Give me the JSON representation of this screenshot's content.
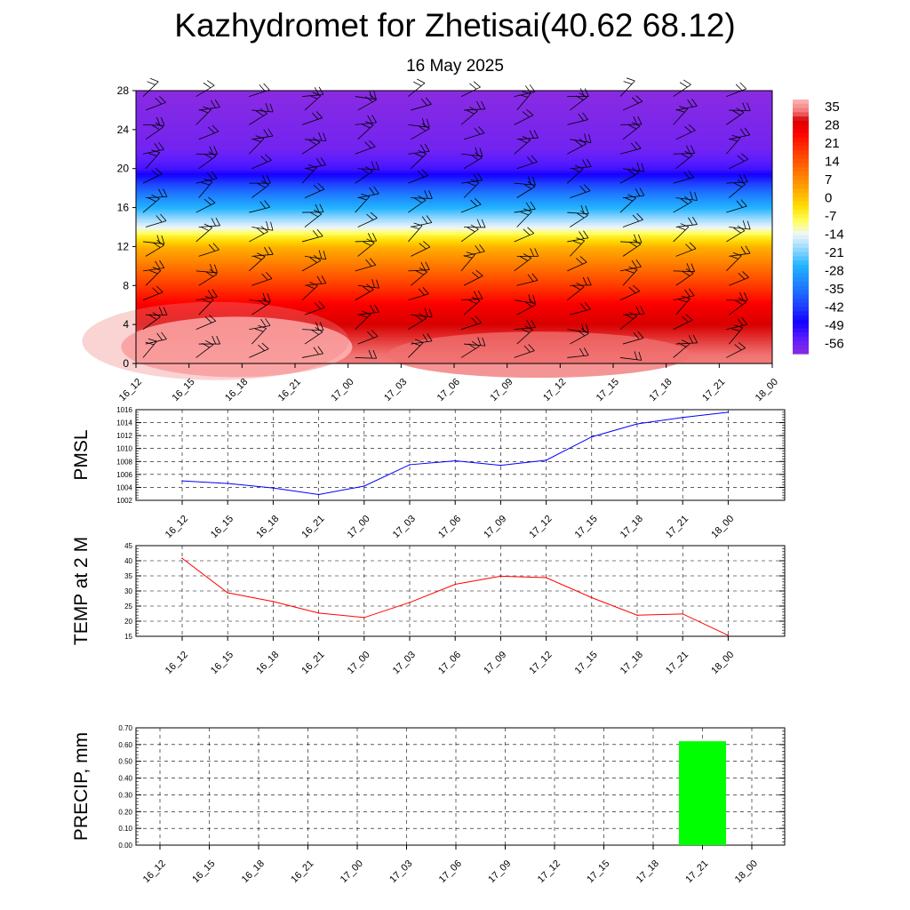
{
  "header": {
    "title": "Kazhydromet for Zhetisai(40.62 68.12)",
    "subtitle": "16 May 2025"
  },
  "time_labels": [
    "16_12",
    "16_15",
    "16_18",
    "16_21",
    "17_00",
    "17_03",
    "17_06",
    "17_09",
    "17_12",
    "17_15",
    "17_18",
    "17_21",
    "18_00"
  ],
  "colors": {
    "pmsl_line": "#0000ff",
    "temp_line": "#ff0000",
    "precip_bar": "#00ff00",
    "grid": "#000000"
  },
  "chart_data": [
    {
      "type": "heatmap",
      "name": "vertical-section",
      "x_labels": [
        "16_12",
        "16_15",
        "16_18",
        "16_21",
        "17_00",
        "17_03",
        "17_06",
        "17_09",
        "17_12",
        "17_15",
        "17_18",
        "17_21",
        "18_00"
      ],
      "y_ticks": [
        "0",
        "4",
        "8",
        "12",
        "16",
        "20",
        "24",
        "28"
      ],
      "ylim": [
        0,
        28
      ],
      "colorbar_labels": [
        "35",
        "28",
        "21",
        "14",
        "7",
        "0",
        "-7",
        "-14",
        "-21",
        "-28",
        "-35",
        "-42",
        "-49",
        "-56"
      ],
      "colorbar_range": [
        -60,
        38
      ],
      "temperature_profile": [
        {
          "z": 0,
          "t": 34
        },
        {
          "z": 4,
          "t": 30
        },
        {
          "z": 6,
          "t": 26
        },
        {
          "z": 8,
          "t": 18
        },
        {
          "z": 10,
          "t": 10
        },
        {
          "z": 12,
          "t": 2
        },
        {
          "z": 13.3,
          "t": -8
        },
        {
          "z": 14,
          "t": -14
        },
        {
          "z": 16,
          "t": -26
        },
        {
          "z": 18,
          "t": -38
        },
        {
          "z": 20,
          "t": -52
        },
        {
          "z": 22,
          "t": -57
        },
        {
          "z": 28,
          "t": -60
        }
      ],
      "overlay": "wind barbs"
    },
    {
      "type": "line",
      "ylabel": "PMSL",
      "categories": [
        "16_12",
        "16_15",
        "16_18",
        "16_21",
        "17_00",
        "17_03",
        "17_06",
        "17_09",
        "17_12",
        "17_15",
        "17_18",
        "17_21",
        "18_00"
      ],
      "values": [
        1005.0,
        1004.6,
        1003.9,
        1002.9,
        1004.2,
        1007.5,
        1008.1,
        1007.4,
        1008.2,
        1011.8,
        1013.8,
        1014.8,
        1015.6
      ],
      "y_ticks": [
        "1002",
        "1004",
        "1006",
        "1008",
        "1010",
        "1012",
        "1014",
        "1016"
      ],
      "ylim": [
        1002,
        1016
      ],
      "grid": true
    },
    {
      "type": "line",
      "ylabel": "TEMP at 2 M",
      "categories": [
        "16_12",
        "16_15",
        "16_18",
        "16_21",
        "17_00",
        "17_03",
        "17_06",
        "17_09",
        "17_12",
        "17_15",
        "17_18",
        "17_21",
        "18_00"
      ],
      "values": [
        40.8,
        29.4,
        26.5,
        22.7,
        21.2,
        26.2,
        32.2,
        34.9,
        34.4,
        27.8,
        22.0,
        22.4,
        15.3
      ],
      "y_ticks": [
        "15",
        "20",
        "25",
        "30",
        "35",
        "40",
        "45"
      ],
      "ylim": [
        15,
        45
      ],
      "grid": true
    },
    {
      "type": "bar",
      "ylabel": "PRECIP, mm",
      "categories": [
        "16_12",
        "16_15",
        "16_18",
        "16_21",
        "17_00",
        "17_03",
        "17_06",
        "17_09",
        "17_12",
        "17_15",
        "17_18",
        "17_21",
        "18_00"
      ],
      "values": [
        0,
        0,
        0,
        0,
        0,
        0,
        0,
        0,
        0,
        0,
        0,
        0.62,
        0
      ],
      "y_ticks": [
        "0.00",
        "0.10",
        "0.20",
        "0.30",
        "0.40",
        "0.50",
        "0.60",
        "0.70"
      ],
      "ylim": [
        0,
        0.7
      ],
      "grid": true
    }
  ]
}
